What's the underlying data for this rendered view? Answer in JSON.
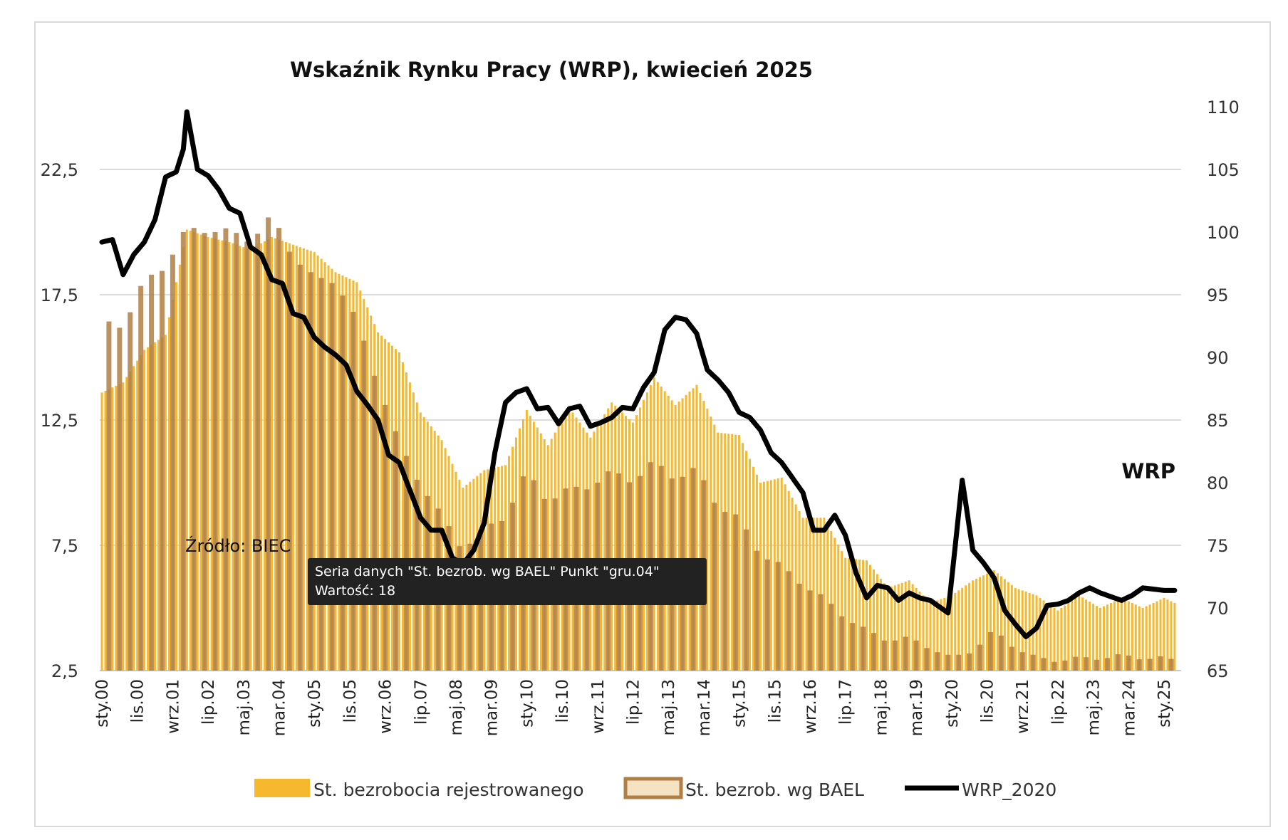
{
  "chart_data": {
    "type": "bar+line",
    "title": "Wskaźnik Rynku Pracy (WRP), kwiecień 2025",
    "left_axis": {
      "min": 2.5,
      "max": 25,
      "ticks": [
        "2,5",
        "7,5",
        "12,5",
        "17,5",
        "22,5"
      ],
      "tick_values": [
        2.5,
        7.5,
        12.5,
        17.5,
        22.5
      ]
    },
    "right_axis": {
      "min": 65,
      "max": 110,
      "ticks": [
        "65",
        "70",
        "75",
        "80",
        "85",
        "90",
        "95",
        "100",
        "105",
        "110"
      ],
      "tick_values": [
        65,
        70,
        75,
        80,
        85,
        90,
        95,
        100,
        105,
        110
      ]
    },
    "x_ticks": [
      "sty.00",
      "lis.00",
      "wrz.01",
      "lip.02",
      "maj.03",
      "mar.04",
      "sty.05",
      "lis.05",
      "wrz.06",
      "lip.07",
      "maj.08",
      "mar.09",
      "sty.10",
      "lis.10",
      "wrz.11",
      "lip.12",
      "maj.13",
      "mar.14",
      "sty.15",
      "lis.15",
      "wrz.16",
      "lip.17",
      "maj.18",
      "mar.19",
      "sty.20",
      "lis.20",
      "wrz.21",
      "lip.22",
      "maj.23",
      "mar.24",
      "sty.25"
    ],
    "x_start": "sty.00",
    "x_end": "kwi.25",
    "grid": "horizontal",
    "legend_position": "bottom",
    "series": [
      {
        "name": "St. bezrobocia rejestrowanego",
        "type": "bar",
        "axis": "left",
        "color": "#f5b82e",
        "keypoints": [
          [
            "sty.00",
            13.6
          ],
          [
            "lip.00",
            14.0
          ],
          [
            "sty.01",
            15.3
          ],
          [
            "lip.01",
            15.9
          ],
          [
            "sty.02",
            20.1
          ],
          [
            "lip.02",
            19.8
          ],
          [
            "sty.03",
            19.6
          ],
          [
            "lip.03",
            19.3
          ],
          [
            "sty.04",
            19.8
          ],
          [
            "lip.04",
            19.5
          ],
          [
            "sty.05",
            19.2
          ],
          [
            "lip.05",
            18.4
          ],
          [
            "sty.06",
            18.0
          ],
          [
            "lip.06",
            16.0
          ],
          [
            "sty.07",
            15.2
          ],
          [
            "lip.07",
            12.8
          ],
          [
            "sty.08",
            11.7
          ],
          [
            "lip.08",
            9.8
          ],
          [
            "sty.09",
            10.5
          ],
          [
            "lip.09",
            10.7
          ],
          [
            "sty.10",
            12.9
          ],
          [
            "lip.10",
            11.5
          ],
          [
            "sty.11",
            13.0
          ],
          [
            "lip.11",
            11.8
          ],
          [
            "sty.12",
            13.2
          ],
          [
            "lip.12",
            12.4
          ],
          [
            "sty.13",
            14.2
          ],
          [
            "lip.13",
            13.1
          ],
          [
            "sty.14",
            13.9
          ],
          [
            "lip.14",
            12.0
          ],
          [
            "sty.15",
            11.9
          ],
          [
            "lip.15",
            10.0
          ],
          [
            "sty.16",
            10.2
          ],
          [
            "lip.16",
            8.6
          ],
          [
            "sty.17",
            8.6
          ],
          [
            "lip.17",
            7.0
          ],
          [
            "sty.18",
            6.9
          ],
          [
            "lip.18",
            5.8
          ],
          [
            "sty.19",
            6.1
          ],
          [
            "lip.19",
            5.2
          ],
          [
            "sty.20",
            5.5
          ],
          [
            "lip.20",
            6.1
          ],
          [
            "sty.21",
            6.5
          ],
          [
            "lip.21",
            5.8
          ],
          [
            "sty.22",
            5.5
          ],
          [
            "lip.22",
            4.9
          ],
          [
            "sty.23",
            5.5
          ],
          [
            "lip.23",
            5.0
          ],
          [
            "sty.24",
            5.4
          ],
          [
            "lip.24",
            5.0
          ],
          [
            "sty.25",
            5.4
          ],
          [
            "kwi.25",
            5.2
          ]
        ]
      },
      {
        "name": "St. bezrob. wg BAEL",
        "type": "bar",
        "axis": "left",
        "color": "#b07f45",
        "keypoints": [
          [
            "sty.00",
            16.6
          ],
          [
            "lip.00",
            16.1
          ],
          [
            "sty.01",
            18.2
          ],
          [
            "lip.01",
            18.5
          ],
          [
            "sty.02",
            20.3
          ],
          [
            "lip.02",
            19.9
          ],
          [
            "sty.03",
            20.2
          ],
          [
            "lip.03",
            19.5
          ],
          [
            "sty.04",
            20.8
          ],
          [
            "lip.04",
            18.9
          ],
          [
            "sty.05",
            18.3
          ],
          [
            "lip.05",
            17.9
          ],
          [
            "sty.06",
            16.6
          ],
          [
            "lip.06",
            13.8
          ],
          [
            "sty.07",
            11.7
          ],
          [
            "lip.07",
            9.8
          ],
          [
            "sty.08",
            8.8
          ],
          [
            "lip.08",
            7.2
          ],
          [
            "sty.09",
            8.3
          ],
          [
            "lip.09",
            8.5
          ],
          [
            "sty.10",
            10.6
          ],
          [
            "lip.10",
            9.1
          ],
          [
            "sty.11",
            9.9
          ],
          [
            "lip.11",
            9.7
          ],
          [
            "sty.12",
            10.6
          ],
          [
            "lip.12",
            9.9
          ],
          [
            "sty.13",
            11.0
          ],
          [
            "lip.13",
            10.0
          ],
          [
            "sty.14",
            10.7
          ],
          [
            "lip.14",
            8.9
          ],
          [
            "sty.15",
            8.7
          ],
          [
            "lip.15",
            7.0
          ],
          [
            "sty.16",
            6.8
          ],
          [
            "lip.16",
            5.8
          ],
          [
            "sty.17",
            5.5
          ],
          [
            "lip.17",
            4.5
          ],
          [
            "sty.18",
            4.2
          ],
          [
            "lip.18",
            3.6
          ],
          [
            "sty.19",
            3.9
          ],
          [
            "lip.19",
            3.3
          ],
          [
            "sty.20",
            3.1
          ],
          [
            "lip.20",
            3.2
          ],
          [
            "sty.21",
            4.2
          ],
          [
            "lip.21",
            3.3
          ],
          [
            "sty.22",
            3.1
          ],
          [
            "lip.22",
            2.8
          ],
          [
            "sty.23",
            3.1
          ],
          [
            "lip.23",
            2.9
          ],
          [
            "sty.24",
            3.2
          ],
          [
            "lip.24",
            2.9
          ],
          [
            "sty.25",
            3.1
          ],
          [
            "kwi.25",
            2.9
          ]
        ]
      },
      {
        "name": "WRP_2020",
        "type": "line",
        "axis": "right",
        "color": "#000000",
        "keypoints": [
          [
            "sty.00",
            99.2
          ],
          [
            "kwi.00",
            99.4
          ],
          [
            "lip.00",
            96.6
          ],
          [
            "paź.00",
            98.2
          ],
          [
            "sty.01",
            99.2
          ],
          [
            "kwi.01",
            101.0
          ],
          [
            "lip.01",
            104.4
          ],
          [
            "paź.01",
            104.8
          ],
          [
            "gru.01",
            106.6
          ],
          [
            "sty.02",
            109.6
          ],
          [
            "kwi.02",
            105.0
          ],
          [
            "lip.02",
            104.5
          ],
          [
            "paź.02",
            103.4
          ],
          [
            "sty.03",
            101.9
          ],
          [
            "kwi.03",
            101.5
          ],
          [
            "lip.03",
            98.8
          ],
          [
            "paź.03",
            98.2
          ],
          [
            "sty.04",
            96.2
          ],
          [
            "kwi.04",
            95.9
          ],
          [
            "lip.04",
            93.5
          ],
          [
            "paź.04",
            93.2
          ],
          [
            "sty.05",
            91.6
          ],
          [
            "kwi.05",
            90.8
          ],
          [
            "lip.05",
            90.2
          ],
          [
            "paź.05",
            89.4
          ],
          [
            "sty.06",
            87.3
          ],
          [
            "kwi.06",
            86.2
          ],
          [
            "lip.06",
            85.0
          ],
          [
            "paź.06",
            82.2
          ],
          [
            "sty.07",
            81.6
          ],
          [
            "kwi.07",
            79.4
          ],
          [
            "lip.07",
            77.2
          ],
          [
            "paź.07",
            76.2
          ],
          [
            "sty.08",
            76.2
          ],
          [
            "kwi.08",
            74.0
          ],
          [
            "lip.08",
            73.5
          ],
          [
            "paź.08",
            74.6
          ],
          [
            "sty.09",
            76.8
          ],
          [
            "kwi.09",
            82.4
          ],
          [
            "lip.09",
            86.4
          ],
          [
            "paź.09",
            87.2
          ],
          [
            "sty.10",
            87.5
          ],
          [
            "kwi.10",
            85.9
          ],
          [
            "lip.10",
            86.0
          ],
          [
            "paź.10",
            84.7
          ],
          [
            "sty.11",
            85.9
          ],
          [
            "kwi.11",
            86.1
          ],
          [
            "lip.11",
            84.5
          ],
          [
            "paź.11",
            84.8
          ],
          [
            "sty.12",
            85.2
          ],
          [
            "kwi.12",
            86.0
          ],
          [
            "lip.12",
            85.9
          ],
          [
            "paź.12",
            87.6
          ],
          [
            "sty.13",
            88.8
          ],
          [
            "kwi.13",
            92.2
          ],
          [
            "lip.13",
            93.2
          ],
          [
            "paź.13",
            93.0
          ],
          [
            "sty.14",
            91.9
          ],
          [
            "kwi.14",
            89.0
          ],
          [
            "lip.14",
            88.2
          ],
          [
            "paź.14",
            87.2
          ],
          [
            "sty.15",
            85.6
          ],
          [
            "kwi.15",
            85.2
          ],
          [
            "lip.15",
            84.2
          ],
          [
            "paź.15",
            82.4
          ],
          [
            "sty.16",
            81.6
          ],
          [
            "kwi.16",
            80.4
          ],
          [
            "lip.16",
            79.2
          ],
          [
            "paź.16",
            76.2
          ],
          [
            "sty.17",
            76.2
          ],
          [
            "kwi.17",
            77.4
          ],
          [
            "lip.17",
            75.8
          ],
          [
            "paź.17",
            72.8
          ],
          [
            "sty.18",
            70.8
          ],
          [
            "kwi.18",
            71.8
          ],
          [
            "lip.18",
            71.6
          ],
          [
            "paź.18",
            70.6
          ],
          [
            "sty.19",
            71.2
          ],
          [
            "kwi.19",
            70.8
          ],
          [
            "lip.19",
            70.6
          ],
          [
            "paź.19",
            70.0
          ],
          [
            "gru.19",
            69.6
          ],
          [
            "kwi.20",
            80.2
          ],
          [
            "lip.20",
            74.6
          ],
          [
            "paź.20",
            73.6
          ],
          [
            "sty.21",
            72.4
          ],
          [
            "kwi.21",
            69.8
          ],
          [
            "lip.21",
            68.7
          ],
          [
            "paź.21",
            67.7
          ],
          [
            "sty.22",
            68.4
          ],
          [
            "kwi.22",
            70.2
          ],
          [
            "lip.22",
            70.3
          ],
          [
            "paź.22",
            70.6
          ],
          [
            "sty.23",
            71.2
          ],
          [
            "kwi.23",
            71.6
          ],
          [
            "lip.23",
            71.2
          ],
          [
            "paź.23",
            70.9
          ],
          [
            "sty.24",
            70.6
          ],
          [
            "kwi.24",
            71.0
          ],
          [
            "lip.24",
            71.6
          ],
          [
            "paź.24",
            71.5
          ],
          [
            "sty.25",
            71.4
          ],
          [
            "kwi.25",
            71.4
          ]
        ]
      }
    ],
    "annotations": {
      "wrp_label": "WRP",
      "source": "Źródło: BIEC"
    },
    "tooltip": {
      "line1": "Seria danych \"St. bezrob. wg BAEL\" Punkt \"gru.04\"",
      "line2": "Wartość: 18"
    }
  }
}
